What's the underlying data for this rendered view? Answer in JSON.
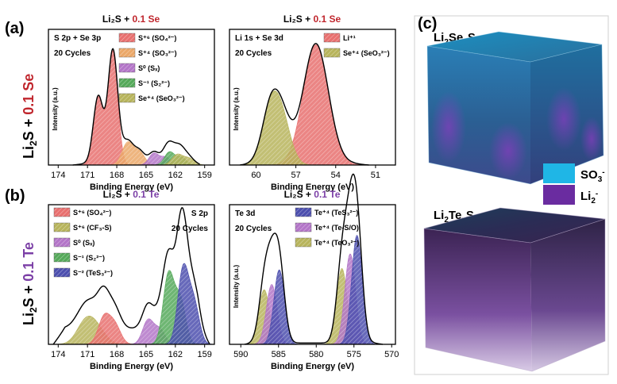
{
  "figure": {
    "label_a": "(a)",
    "label_b": "(b)",
    "label_c": "(c)",
    "row_a_side": [
      "Li",
      "2",
      "S + ",
      "0.1 Se"
    ],
    "row_b_side": [
      "Li",
      "2",
      "S + ",
      "0.1 Te"
    ],
    "cube_top_title": [
      "Li",
      "2",
      "Se",
      "x",
      "S",
      "y"
    ],
    "cube_bottom_title": [
      "Li",
      "2",
      "Te",
      "x",
      "S",
      "y"
    ],
    "cube_legend": [
      {
        "label": "SO",
        "sup": "3",
        "tail": "-",
        "color": "#1fb6e6"
      },
      {
        "label": "Li",
        "sup": "2",
        "tail": "-",
        "color": "#6a2ca0"
      }
    ]
  },
  "chart_data": [
    {
      "id": "a-left",
      "type": "area",
      "title": "Li₂S + 0.1 Se",
      "annot": [
        "S 2p + Se 3p",
        "20 Cycles"
      ],
      "xlabel": "Binding Energy (eV)",
      "ylabel": "Intensity (a.u.)",
      "xlim": [
        175,
        158
      ],
      "ylim": [
        0,
        1.05
      ],
      "ticks": [
        174,
        171,
        168,
        165,
        162,
        159
      ],
      "legend": [
        {
          "text": "S⁺⁶ (SO₄²⁻)",
          "color": "#e8706f"
        },
        {
          "text": "S⁺⁴ (SO₃²⁻)",
          "color": "#eba869"
        },
        {
          "text": "S⁰ (Sₓ)",
          "color": "#b375c8"
        },
        {
          "text": "S⁻¹ (S₂²⁻)",
          "color": "#55a95a"
        },
        {
          "text": "Se⁺⁴ (SeO₃²⁻)",
          "color": "#b7b45c"
        }
      ],
      "peaks": [
        {
          "color": "#e8706f",
          "components": [
            [
              169.9,
              0.5,
              0.52
            ],
            [
              168.4,
              0.5,
              0.88
            ]
          ]
        },
        {
          "color": "#eba869",
          "components": [
            [
              166.9,
              0.55,
              0.17
            ],
            [
              165.7,
              0.55,
              0.1
            ]
          ]
        },
        {
          "color": "#b375c8",
          "components": [
            [
              164.2,
              0.5,
              0.09
            ],
            [
              163.0,
              0.5,
              0.06
            ]
          ]
        },
        {
          "color": "#55a95a",
          "components": [
            [
              162.6,
              0.5,
              0.1
            ],
            [
              161.4,
              0.5,
              0.06
            ]
          ]
        },
        {
          "color": "#b7b45c",
          "components": [
            [
              161.8,
              0.55,
              0.08
            ],
            [
              160.6,
              0.55,
              0.05
            ]
          ]
        }
      ],
      "envelope": {
        "baseline": 0.01,
        "range": [
          172.5,
          159.5
        ]
      }
    },
    {
      "id": "a-right",
      "type": "area",
      "title": "Li₂S + 0.1 Se",
      "annot": [
        "Li 1s + Se 3d",
        "20 Cycles"
      ],
      "xlabel": "Binding Energy (eV)",
      "ylabel": "Intensity (a.u.)",
      "xlim": [
        62,
        49.5
      ],
      "ylim": [
        0,
        1.05
      ],
      "ticks": [
        60,
        57,
        54,
        51
      ],
      "legend": [
        {
          "text": "Li⁺¹",
          "color": "#e8706f"
        },
        {
          "text": "Se⁺⁴ (SeO₃²⁻)",
          "color": "#b7b45c"
        }
      ],
      "peaks": [
        {
          "color": "#e8706f",
          "components": [
            [
              55.5,
              0.95,
              0.93
            ]
          ]
        },
        {
          "color": "#b7b45c",
          "components": [
            [
              58.9,
              0.65,
              0.42
            ],
            [
              58.0,
              0.65,
              0.3
            ]
          ]
        }
      ],
      "envelope": {
        "baseline": 0.01,
        "range": [
          61.2,
          51.5
        ]
      }
    },
    {
      "id": "b-left",
      "type": "area",
      "title": "Li₂S + 0.1 Te",
      "annot": [
        "S 2p",
        "20 Cycles"
      ],
      "xlabel": "Binding Energy (eV)",
      "ylabel": "",
      "xlim": [
        175,
        158
      ],
      "ylim": [
        0,
        1.05
      ],
      "ticks": [
        174,
        171,
        168,
        165,
        162,
        159
      ],
      "legend": [
        {
          "text": "S⁺⁶ (SO₄²⁻)",
          "color": "#e8706f"
        },
        {
          "text": "S⁺⁶ (CF₃-S)",
          "color": "#b7b45c"
        },
        {
          "text": "S⁰ (Sₓ)",
          "color": "#b375c8"
        },
        {
          "text": "S⁻¹ (S₂²⁻)",
          "color": "#55a95a"
        },
        {
          "text": "S⁻² (TeS₃²⁻)",
          "color": "#4c4fae"
        }
      ],
      "peaks": [
        {
          "color": "#b7b45c",
          "components": [
            [
              171.2,
              0.9,
              0.16
            ],
            [
              170.0,
              0.9,
              0.1
            ]
          ]
        },
        {
          "color": "#e8706f",
          "components": [
            [
              169.3,
              0.6,
              0.2
            ],
            [
              168.2,
              0.6,
              0.14
            ]
          ]
        },
        {
          "color": "#b375c8",
          "components": [
            [
              164.8,
              0.55,
              0.18
            ],
            [
              163.6,
              0.55,
              0.11
            ]
          ]
        },
        {
          "color": "#55a95a",
          "components": [
            [
              162.7,
              0.55,
              0.52
            ],
            [
              161.5,
              0.55,
              0.33
            ]
          ]
        },
        {
          "color": "#4c4fae",
          "components": [
            [
              161.2,
              0.55,
              0.56
            ],
            [
              160.1,
              0.55,
              0.3
            ]
          ]
        }
      ],
      "envelope": {
        "baseline": 0.12,
        "range": [
          174.5,
          158.5
        ]
      }
    },
    {
      "id": "b-right",
      "type": "area",
      "title": "Li₂S + 0.1 Te",
      "annot": [
        "Te 3d",
        "20 Cycles"
      ],
      "xlabel": "Binding Energy (eV)",
      "ylabel": "Intensity (a.u.)",
      "xlim": [
        591.5,
        569.5
      ],
      "ylim": [
        0,
        1.05
      ],
      "ticks": [
        590,
        585,
        580,
        575,
        570
      ],
      "legend": [
        {
          "text": "Te⁺⁴ (TeS₃²⁻)",
          "color": "#4c4fae"
        },
        {
          "text": "Te⁺⁴ (Te-S/O)",
          "color": "#b375c8"
        },
        {
          "text": "Te⁺⁴ (TeO₃²⁻)",
          "color": "#b7b45c"
        }
      ],
      "peaks": [
        {
          "color": "#b7b45c",
          "components": [
            [
              586.9,
              0.7,
              0.41
            ],
            [
              576.6,
              0.7,
              0.57
            ]
          ]
        },
        {
          "color": "#b375c8",
          "components": [
            [
              585.9,
              0.7,
              0.45
            ],
            [
              575.5,
              0.7,
              0.68
            ]
          ]
        },
        {
          "color": "#4c4fae",
          "components": [
            [
              584.9,
              0.7,
              0.56
            ],
            [
              574.6,
              0.7,
              0.82
            ]
          ]
        }
      ],
      "envelope": {
        "baseline": 0.01,
        "range": [
          589.5,
          571.2
        ]
      }
    }
  ]
}
